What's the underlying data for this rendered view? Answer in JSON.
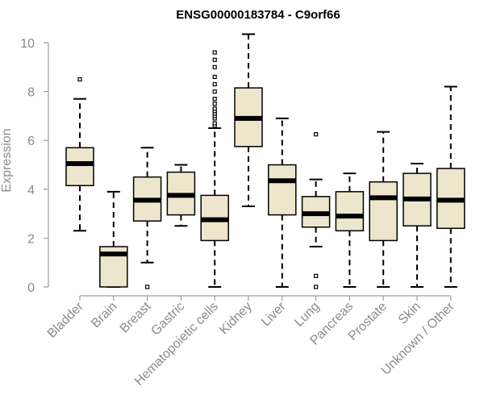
{
  "chart_data": {
    "type": "boxplot",
    "title": "ENSG00000183784 - C9orf66",
    "ylabel": "Expression",
    "xlabel": "",
    "ylim": [
      0,
      10.4
    ],
    "yticks": [
      0,
      2,
      4,
      6,
      8,
      10
    ],
    "grid": false,
    "legend": "none",
    "colors": {
      "box_fill": "#ede6cd",
      "box_stroke": "#000000",
      "median": "#000000",
      "axis": "#8a8a8a",
      "text": "#8a8a8a"
    },
    "categories": [
      "Bladder",
      "Brain",
      "Breast",
      "Gastric",
      "Hematopoietic cells",
      "Kidney",
      "Liver",
      "Lung",
      "Pancreas",
      "Prostate",
      "Skin",
      "Unknown / Other"
    ],
    "boxes": [
      {
        "category": "Bladder",
        "whisker_low": 2.3,
        "q1": 4.15,
        "median": 5.05,
        "q3": 5.7,
        "whisker_high": 7.7,
        "outliers": [
          8.5
        ]
      },
      {
        "category": "Brain",
        "whisker_low": 0.0,
        "q1": 0.0,
        "median": 1.35,
        "q3": 1.65,
        "whisker_high": 3.9,
        "outliers": []
      },
      {
        "category": "Breast",
        "whisker_low": 1.0,
        "q1": 2.7,
        "median": 3.55,
        "q3": 4.5,
        "whisker_high": 5.7,
        "outliers": [
          0.0
        ]
      },
      {
        "category": "Gastric",
        "whisker_low": 2.5,
        "q1": 2.95,
        "median": 3.75,
        "q3": 4.7,
        "whisker_high": 5.0,
        "outliers": []
      },
      {
        "category": "Hematopoietic cells",
        "whisker_low": 0.0,
        "q1": 1.9,
        "median": 2.75,
        "q3": 3.75,
        "whisker_high": 6.5,
        "outliers": [
          6.6,
          6.7,
          6.9,
          7.0,
          7.1,
          7.2,
          7.3,
          7.5,
          7.7,
          8.0,
          8.3,
          8.6,
          9.0,
          9.3,
          9.6
        ]
      },
      {
        "category": "Kidney",
        "whisker_low": 3.3,
        "q1": 5.75,
        "median": 6.9,
        "q3": 8.15,
        "whisker_high": 10.35,
        "outliers": []
      },
      {
        "category": "Liver",
        "whisker_low": 0.0,
        "q1": 2.95,
        "median": 4.35,
        "q3": 5.0,
        "whisker_high": 6.9,
        "outliers": []
      },
      {
        "category": "Lung",
        "whisker_low": 1.65,
        "q1": 2.45,
        "median": 3.0,
        "q3": 3.7,
        "whisker_high": 4.4,
        "outliers": [
          6.25,
          0.45,
          0.0
        ]
      },
      {
        "category": "Pancreas",
        "whisker_low": 0.0,
        "q1": 2.3,
        "median": 2.9,
        "q3": 3.9,
        "whisker_high": 4.65,
        "outliers": []
      },
      {
        "category": "Prostate",
        "whisker_low": 0.0,
        "q1": 1.9,
        "median": 3.65,
        "q3": 4.3,
        "whisker_high": 6.35,
        "outliers": []
      },
      {
        "category": "Skin",
        "whisker_low": 0.0,
        "q1": 2.5,
        "median": 3.6,
        "q3": 4.65,
        "whisker_high": 5.05,
        "outliers": []
      },
      {
        "category": "Unknown / Other",
        "whisker_low": 0.0,
        "q1": 2.4,
        "median": 3.55,
        "q3": 4.85,
        "whisker_high": 8.2,
        "outliers": []
      }
    ]
  }
}
